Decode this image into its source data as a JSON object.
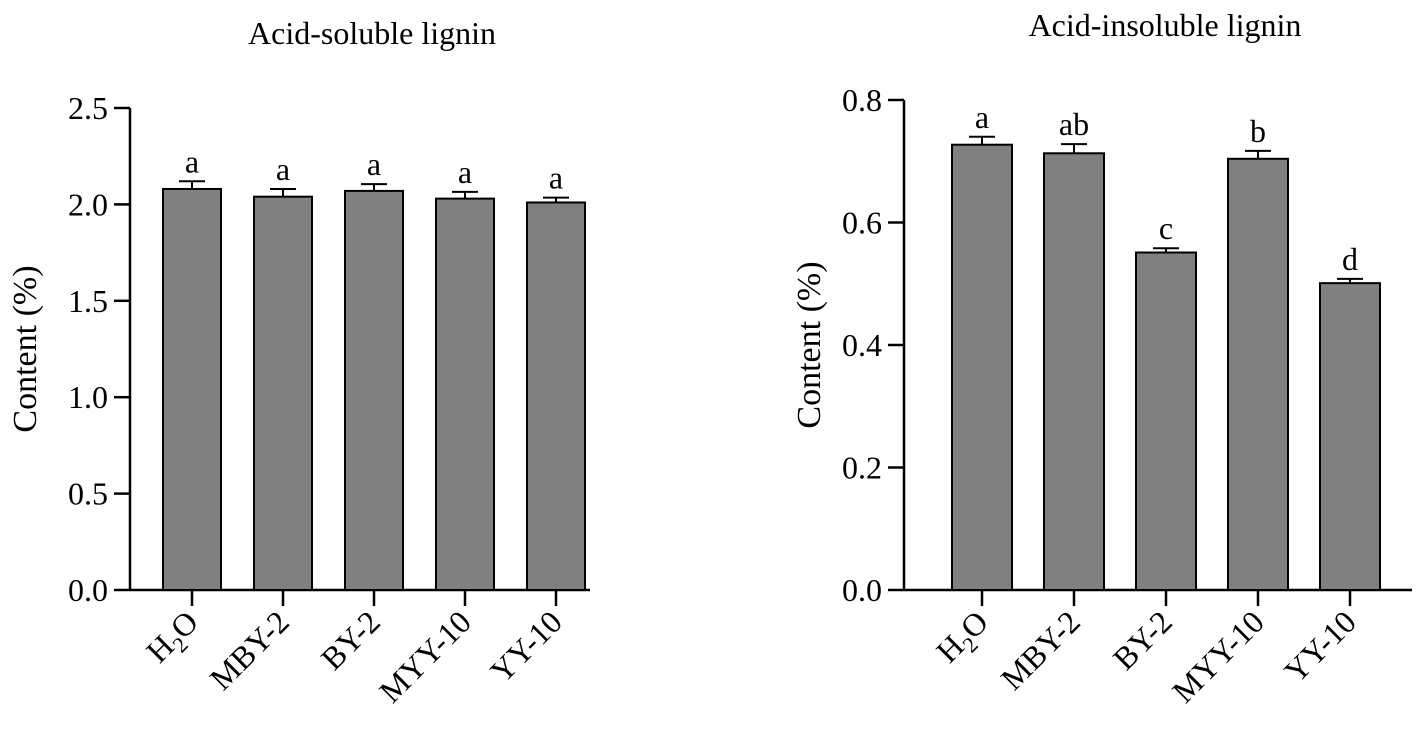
{
  "colors": {
    "bar_fill": "#808080",
    "bar_stroke": "#000000",
    "axis": "#000000"
  },
  "chart_data": [
    {
      "type": "bar",
      "title": "Acid-soluble lignin",
      "xlabel": "",
      "ylabel": "Content (%)",
      "ylim": [
        0,
        2.5
      ],
      "yticks": [
        "0.0",
        "0.5",
        "1.0",
        "1.5",
        "2.0",
        "2.5"
      ],
      "grid": false,
      "categories": [
        "H2O",
        "MBY-2",
        "BY-2",
        "MYY-10",
        "YY-10"
      ],
      "values": [
        2.08,
        2.04,
        2.07,
        2.03,
        2.01
      ],
      "errors": [
        0.04,
        0.04,
        0.035,
        0.035,
        0.025
      ],
      "significance": [
        "a",
        "a",
        "a",
        "a",
        "a"
      ]
    },
    {
      "type": "bar",
      "title": "Acid-insoluble lignin",
      "xlabel": "",
      "ylabel": "Content (%)",
      "ylim": [
        0,
        0.8
      ],
      "yticks": [
        "0.0",
        "0.2",
        "0.4",
        "0.6",
        "0.8"
      ],
      "grid": false,
      "categories": [
        "H2O",
        "MBY-2",
        "BY-2",
        "MYY-10",
        "YY-10"
      ],
      "values": [
        0.727,
        0.713,
        0.551,
        0.704,
        0.501
      ],
      "errors": [
        0.013,
        0.015,
        0.007,
        0.013,
        0.007
      ],
      "significance": [
        "a",
        "ab",
        "c",
        "b",
        "d"
      ]
    }
  ]
}
